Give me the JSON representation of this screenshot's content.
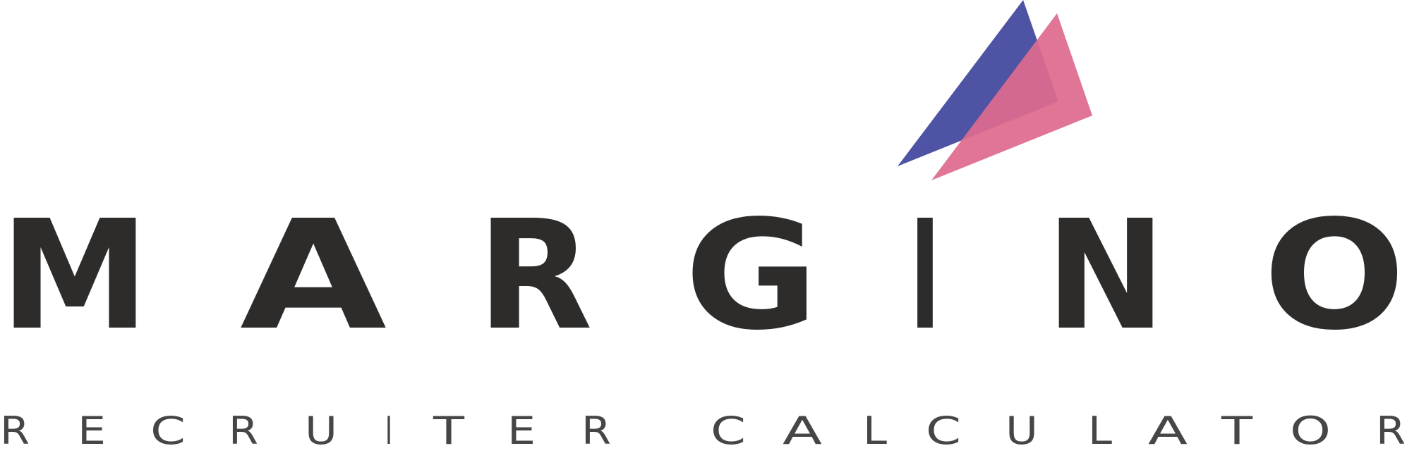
{
  "logo": {
    "wordmark": [
      "M",
      "A",
      "R",
      "G",
      "I",
      "N",
      "O"
    ],
    "tagline": [
      "R",
      "E",
      "C",
      "R",
      "U",
      "I",
      "T",
      "E",
      "R",
      "C",
      "A",
      "L",
      "C",
      "U",
      "L",
      "A",
      "T",
      "O",
      "R"
    ],
    "wordmark_text": "MARGINO",
    "tagline_text": "RECRUITER CALCULATOR"
  },
  "colors": {
    "wordmark": "#2d2c2b",
    "tagline": "#464646",
    "mark_blue": "#4f53a4",
    "mark_pink": "#de6a8e",
    "mark_overlap": "#c95b80"
  }
}
